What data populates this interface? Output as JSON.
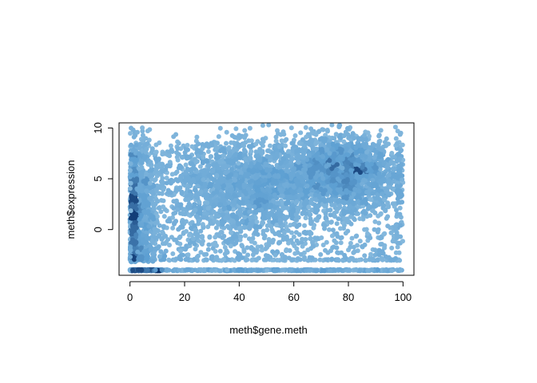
{
  "chart_data": {
    "type": "scatter",
    "title": "",
    "xlabel": "meth$gene.meth",
    "ylabel": "meth$expression",
    "xlim": [
      -4,
      104
    ],
    "ylim": [
      -4.5,
      10.5
    ],
    "x_ticks": [
      0,
      20,
      40,
      60,
      80,
      100
    ],
    "y_ticks": [
      0,
      5,
      10
    ],
    "tick_labels_x": [
      "0",
      "20",
      "40",
      "60",
      "80",
      "100"
    ],
    "tick_labels_y": [
      "0",
      "5",
      "10"
    ],
    "grid": false,
    "legend": "none",
    "point_style": "smoothScatter-like density coloring (light blue to dark navy)",
    "colors": {
      "light": "#8fbfe0",
      "mid": "#5d9fd2",
      "dark": "#08306b",
      "frame": "#000000"
    },
    "series": [
      {
        "description_floor_band": "dense horizontal band of points at expression ≈ -4.0 across x 0–100, darkest near x 0–10",
        "floor_band": {
          "y": -4.0,
          "x_range": [
            0,
            100
          ]
        },
        "second_band": {
          "y": -3.0,
          "x_range": [
            0,
            100
          ]
        },
        "clusters": [
          {
            "x_center": 2,
            "y_center": 1.5,
            "x_spread": 4,
            "y_spread": 3.5
          },
          {
            "x_center": 45,
            "y_center": 4.5,
            "x_spread": 14,
            "y_spread": 2.2
          },
          {
            "x_center": 78,
            "y_center": 5.8,
            "x_spread": 10,
            "y_spread": 1.8
          }
        ],
        "x_range": [
          0,
          100
        ],
        "y_range": [
          -4.2,
          10.3
        ]
      }
    ]
  }
}
